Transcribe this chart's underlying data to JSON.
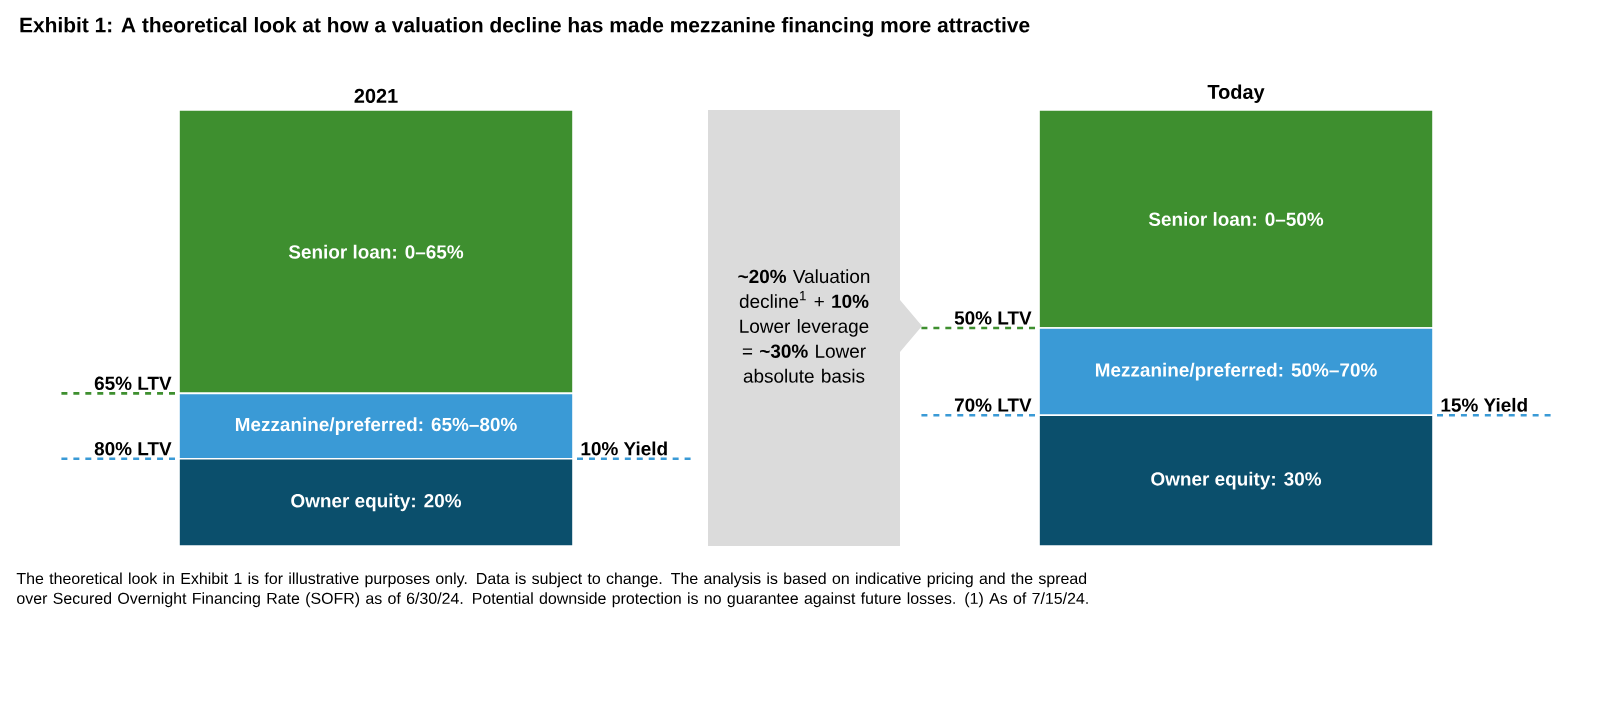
{
  "chart_data": {
    "type": "bar",
    "stacked": true,
    "title": "Exhibit 1: A theoretical look at how a valuation decline has made mezzanine financing more attractive",
    "categories": [
      "2021",
      "Today"
    ],
    "series": [
      {
        "color": "#0b4f6c",
        "values": [
          20,
          30
        ],
        "value_labels": [
          "Owner equity: 20%",
          "Owner equity: 30%"
        ]
      },
      {
        "color": "#3a9ad6",
        "values": [
          15,
          20
        ]
      },
      {
        "color": "#3e8f2f",
        "values": [
          65,
          50
        ]
      }
    ],
    "annotations": [
      "65% LTV",
      "80% LTV",
      "10% Yield",
      "50% LTV",
      "70% LTV",
      "15% Yield",
      "Mezzanine/preferred: 65%–80%",
      "Mezzanine/preferred: 50%–70%",
      "Senior loan: 0–65%",
      "Senior loan: 0–50%",
      "**~20%** Valuation decline$^{1}$ + **10%** Lower leverage = **~30%** Lower absolute basis",
      "The theoretical look in Exhibit 1 is for illustrative purposes only. Data is subject to change. The analysis is based on indicative pricing and the spread over Secured Overnight Financing Rate (SOFR) as of 6/30/24. Potential downside protection is no guarantee against future losses. (1) As of 7/15/24."
    ]
  }
}
